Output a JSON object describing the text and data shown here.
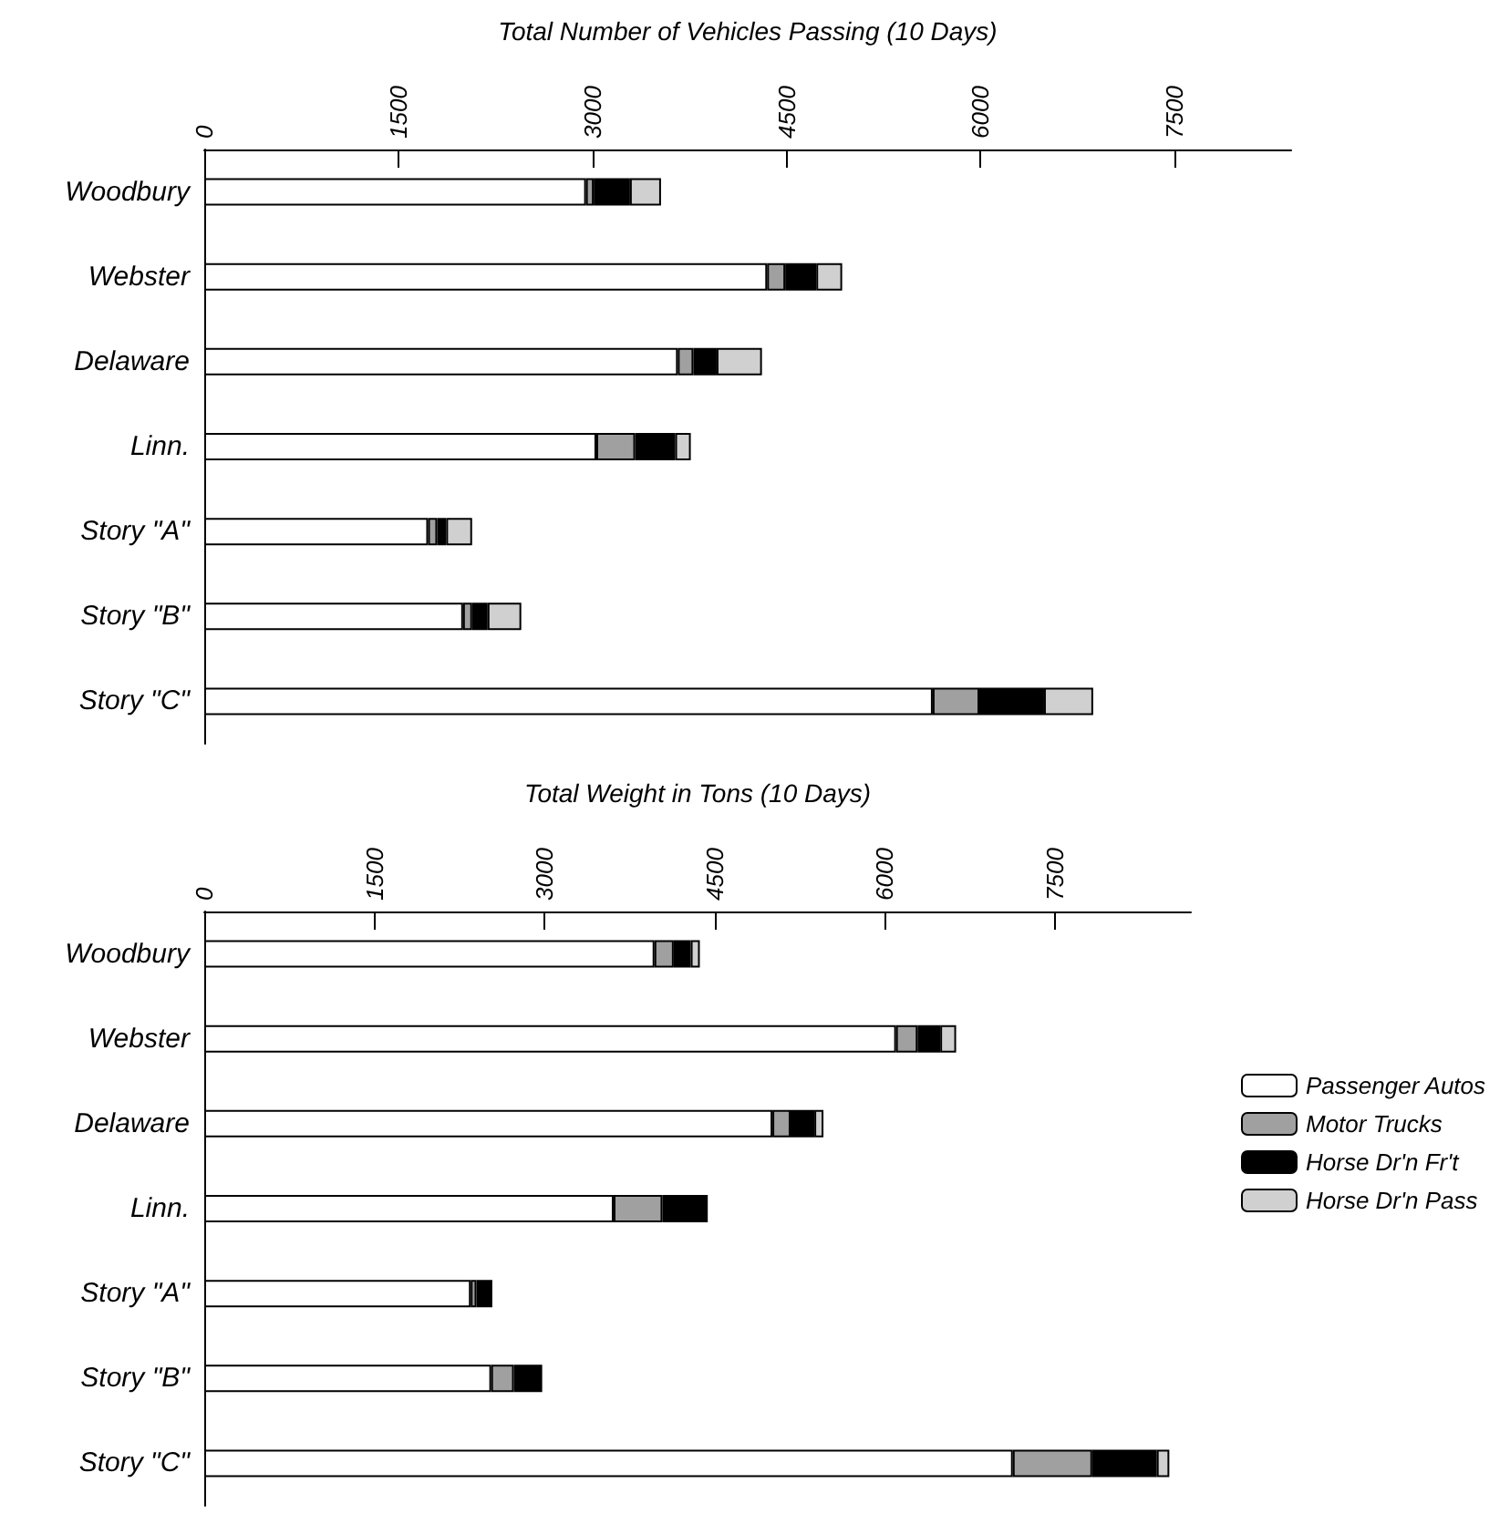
{
  "chart_data": [
    {
      "type": "bar",
      "orientation": "horizontal",
      "stacked": true,
      "xlabel": "Total Number of Vehicles Passing (10 Days)",
      "categories": [
        "Woodbury",
        "Webster",
        "Delaware",
        "Linn.",
        "Story \"A\"",
        "Story \"B\"",
        "Story \"C\""
      ],
      "xlim": [
        0,
        8400
      ],
      "xticks": [
        0,
        1500,
        3000,
        4500,
        6000,
        7500
      ],
      "grid": false,
      "legend": false,
      "series": [
        {
          "color": "#ffffff",
          "values": [
            2950,
            4350,
            3660,
            3030,
            1730,
            2000,
            5630
          ]
        },
        {
          "color": "#a0a0a0",
          "values": [
            60,
            140,
            120,
            300,
            70,
            70,
            360
          ]
        },
        {
          "color": "#000000",
          "values": [
            280,
            240,
            180,
            310,
            70,
            120,
            500
          ]
        },
        {
          "color": "#d0d0d0",
          "values": [
            240,
            200,
            350,
            120,
            200,
            260,
            380
          ]
        }
      ]
    },
    {
      "type": "bar",
      "orientation": "horizontal",
      "stacked": true,
      "xlabel": "Total Weight in Tons (10 Days)",
      "categories": [
        "Woodbury",
        "Webster",
        "Delaware",
        "Linn.",
        "Story \"A\"",
        "Story \"B\"",
        "Story \"C\""
      ],
      "xlim": [
        0,
        8700
      ],
      "xticks": [
        0,
        1500,
        3000,
        4500,
        6000,
        7500
      ],
      "grid": false,
      "legend": "right",
      "series": [
        {
          "name": "Passenger Autos",
          "color": "#ffffff",
          "values": [
            3970,
            6100,
            5010,
            3610,
            2350,
            2530,
            7130
          ]
        },
        {
          "name": "Motor Trucks",
          "color": "#a0a0a0",
          "values": [
            170,
            190,
            160,
            430,
            50,
            200,
            700
          ]
        },
        {
          "name": "Horse Dr'n Fr't",
          "color": "#000000",
          "values": [
            150,
            200,
            210,
            400,
            140,
            250,
            570
          ]
        },
        {
          "name": "Horse Dr'n Pass",
          "color": "#d0d0d0",
          "values": [
            80,
            140,
            80,
            0,
            0,
            0,
            110
          ]
        }
      ]
    }
  ]
}
